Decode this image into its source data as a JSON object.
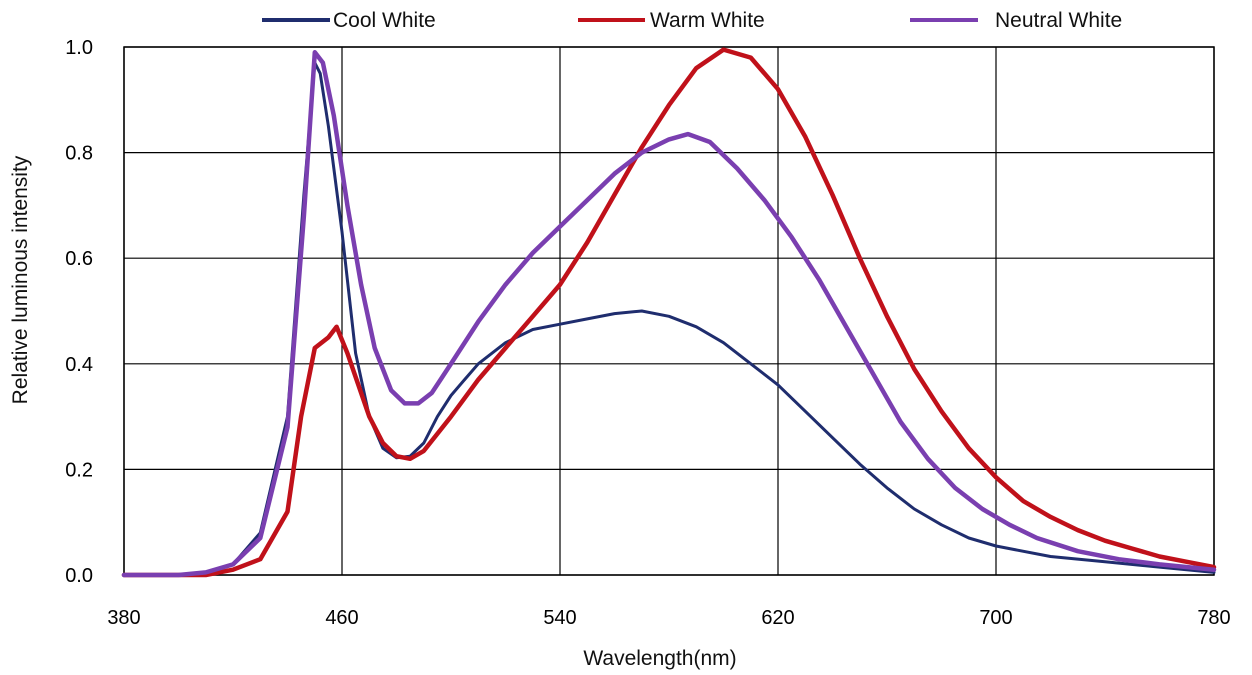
{
  "chart_data": {
    "type": "line",
    "title": "",
    "xlabel": "Wavelength(nm)",
    "ylabel": "Relative luminous intensity",
    "xlim": [
      380,
      780
    ],
    "ylim": [
      0,
      1.0
    ],
    "x_ticks": [
      "380",
      "460",
      "540",
      "620",
      "700",
      "780"
    ],
    "y_ticks": [
      "0.0",
      "0.2",
      "0.4",
      "0.6",
      "0.8",
      "1.0"
    ],
    "grid": true,
    "legend_position": "top",
    "series": [
      {
        "name": "Cool White",
        "color": "#1f2d6e",
        "points": [
          [
            380,
            0
          ],
          [
            400,
            0
          ],
          [
            410,
            0.005
          ],
          [
            420,
            0.02
          ],
          [
            430,
            0.08
          ],
          [
            440,
            0.3
          ],
          [
            446,
            0.72
          ],
          [
            450,
            0.97
          ],
          [
            452,
            0.95
          ],
          [
            455,
            0.85
          ],
          [
            460,
            0.65
          ],
          [
            465,
            0.42
          ],
          [
            470,
            0.3
          ],
          [
            475,
            0.24
          ],
          [
            480,
            0.222
          ],
          [
            485,
            0.225
          ],
          [
            490,
            0.25
          ],
          [
            495,
            0.3
          ],
          [
            500,
            0.34
          ],
          [
            505,
            0.37
          ],
          [
            510,
            0.4
          ],
          [
            520,
            0.44
          ],
          [
            530,
            0.465
          ],
          [
            540,
            0.475
          ],
          [
            550,
            0.485
          ],
          [
            560,
            0.495
          ],
          [
            570,
            0.5
          ],
          [
            580,
            0.49
          ],
          [
            590,
            0.47
          ],
          [
            600,
            0.44
          ],
          [
            610,
            0.4
          ],
          [
            620,
            0.36
          ],
          [
            630,
            0.31
          ],
          [
            640,
            0.26
          ],
          [
            650,
            0.21
          ],
          [
            660,
            0.165
          ],
          [
            670,
            0.125
          ],
          [
            680,
            0.095
          ],
          [
            690,
            0.07
          ],
          [
            700,
            0.055
          ],
          [
            720,
            0.035
          ],
          [
            740,
            0.025
          ],
          [
            760,
            0.015
          ],
          [
            780,
            0.005
          ]
        ]
      },
      {
        "name": "Warm White",
        "color": "#c0111a",
        "points": [
          [
            380,
            0
          ],
          [
            410,
            0
          ],
          [
            420,
            0.01
          ],
          [
            430,
            0.03
          ],
          [
            440,
            0.12
          ],
          [
            445,
            0.3
          ],
          [
            450,
            0.43
          ],
          [
            455,
            0.45
          ],
          [
            458,
            0.47
          ],
          [
            462,
            0.42
          ],
          [
            470,
            0.3
          ],
          [
            475,
            0.25
          ],
          [
            480,
            0.225
          ],
          [
            485,
            0.22
          ],
          [
            490,
            0.235
          ],
          [
            500,
            0.3
          ],
          [
            510,
            0.37
          ],
          [
            520,
            0.43
          ],
          [
            530,
            0.49
          ],
          [
            540,
            0.55
          ],
          [
            550,
            0.63
          ],
          [
            560,
            0.72
          ],
          [
            570,
            0.81
          ],
          [
            580,
            0.89
          ],
          [
            590,
            0.96
          ],
          [
            600,
            0.995
          ],
          [
            610,
            0.98
          ],
          [
            620,
            0.92
          ],
          [
            630,
            0.83
          ],
          [
            640,
            0.72
          ],
          [
            650,
            0.6
          ],
          [
            660,
            0.49
          ],
          [
            670,
            0.39
          ],
          [
            680,
            0.31
          ],
          [
            690,
            0.24
          ],
          [
            700,
            0.185
          ],
          [
            710,
            0.14
          ],
          [
            720,
            0.11
          ],
          [
            730,
            0.085
          ],
          [
            740,
            0.065
          ],
          [
            750,
            0.05
          ],
          [
            760,
            0.035
          ],
          [
            770,
            0.025
          ],
          [
            780,
            0.015
          ]
        ]
      },
      {
        "name": "Neutral White",
        "color": "#7a3fb0",
        "points": [
          [
            380,
            0
          ],
          [
            400,
            0
          ],
          [
            410,
            0.005
          ],
          [
            420,
            0.02
          ],
          [
            430,
            0.07
          ],
          [
            440,
            0.28
          ],
          [
            446,
            0.68
          ],
          [
            450,
            0.99
          ],
          [
            453,
            0.97
          ],
          [
            457,
            0.87
          ],
          [
            462,
            0.7
          ],
          [
            467,
            0.55
          ],
          [
            472,
            0.43
          ],
          [
            478,
            0.35
          ],
          [
            483,
            0.325
          ],
          [
            488,
            0.325
          ],
          [
            493,
            0.345
          ],
          [
            500,
            0.4
          ],
          [
            510,
            0.48
          ],
          [
            520,
            0.55
          ],
          [
            530,
            0.61
          ],
          [
            540,
            0.66
          ],
          [
            550,
            0.71
          ],
          [
            560,
            0.76
          ],
          [
            570,
            0.8
          ],
          [
            580,
            0.825
          ],
          [
            587,
            0.835
          ],
          [
            595,
            0.82
          ],
          [
            605,
            0.77
          ],
          [
            615,
            0.71
          ],
          [
            625,
            0.64
          ],
          [
            635,
            0.56
          ],
          [
            645,
            0.47
          ],
          [
            655,
            0.38
          ],
          [
            665,
            0.29
          ],
          [
            675,
            0.22
          ],
          [
            685,
            0.165
          ],
          [
            695,
            0.125
          ],
          [
            705,
            0.095
          ],
          [
            715,
            0.07
          ],
          [
            730,
            0.045
          ],
          [
            745,
            0.03
          ],
          [
            760,
            0.02
          ],
          [
            780,
            0.01
          ]
        ]
      }
    ]
  }
}
